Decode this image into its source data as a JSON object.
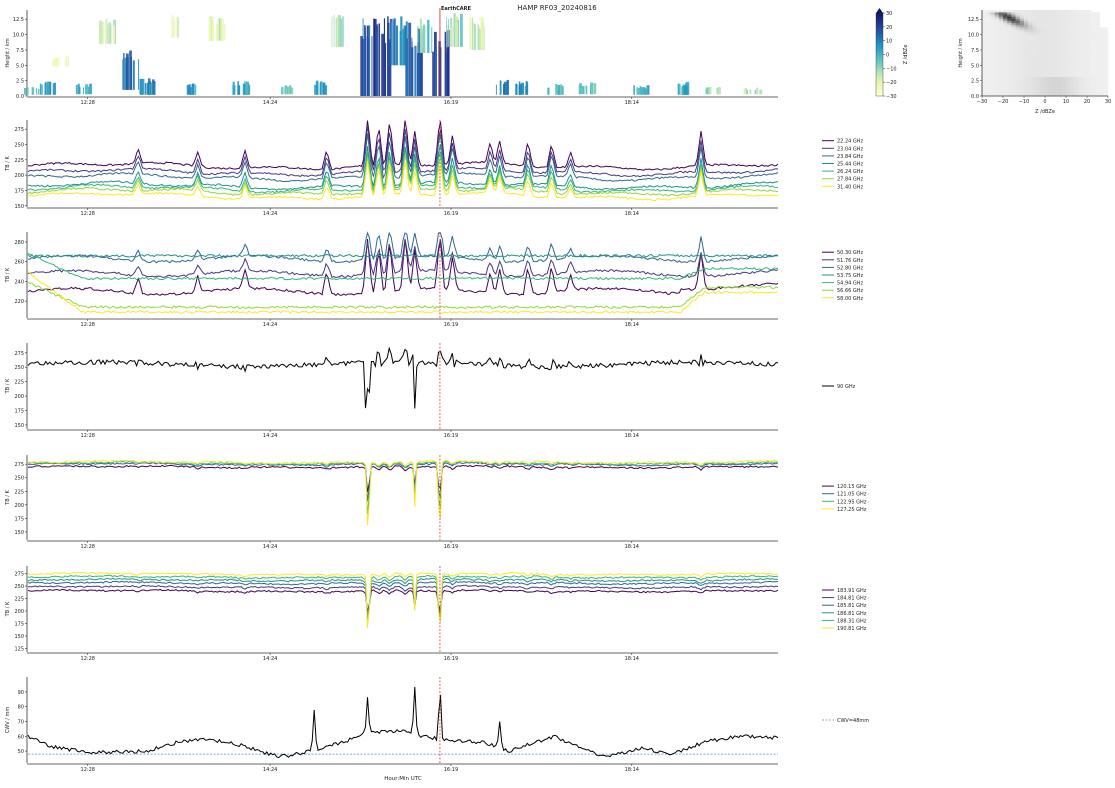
{
  "figure": {
    "title": "HAMP RF03_20240816",
    "xlabel": "Hour:Min UTC",
    "x_ticks": [
      "12:28",
      "14:24",
      "16:19",
      "18:14"
    ],
    "x_range": [
      "11:50",
      "19:47"
    ],
    "event_time": "16:12",
    "event_label": "EarthCARE",
    "event_color": "#e41a1c"
  },
  "chart_data": [
    {
      "id": "radar",
      "type": "heatmap",
      "ylabel": "Height / km",
      "ylim": [
        0,
        14
      ],
      "y_ticks": [
        "0.0",
        "2.5",
        "5.0",
        "7.5",
        "10.0",
        "12.5"
      ],
      "colorbar": {
        "label": "Z /dBZe",
        "range": [
          -30,
          30
        ],
        "ticks": [
          "−30",
          "−20",
          "−10",
          "0",
          "10",
          "20",
          "30"
        ],
        "colormap": [
          "#ffffd9",
          "#edf8b1",
          "#c7e9b4",
          "#7fcdbb",
          "#41b6c4",
          "#1d91c0",
          "#225ea8",
          "#253494",
          "#081d58"
        ]
      },
      "cloud_cells": [
        {
          "t": "11:52",
          "base": 0.2,
          "top": 1.6,
          "dbz": -8
        },
        {
          "t": "12:02",
          "base": 0.2,
          "top": 2.4,
          "dbz": 5
        },
        {
          "t": "12:10",
          "base": 4.8,
          "top": 6.5,
          "dbz": -22
        },
        {
          "t": "12:25",
          "base": 0.3,
          "top": 2.0,
          "dbz": 0
        },
        {
          "t": "12:40",
          "base": 8.5,
          "top": 13.0,
          "dbz": -18
        },
        {
          "t": "12:55",
          "base": 1.0,
          "top": 7.5,
          "dbz": 12
        },
        {
          "t": "13:05",
          "base": 0.2,
          "top": 3.0,
          "dbz": 8
        },
        {
          "t": "13:20",
          "base": 9.5,
          "top": 13.5,
          "dbz": -20
        },
        {
          "t": "13:35",
          "base": 0.2,
          "top": 2.2,
          "dbz": 4
        },
        {
          "t": "13:50",
          "base": 9.0,
          "top": 13.0,
          "dbz": -16
        },
        {
          "t": "14:05",
          "base": 0.2,
          "top": 2.5,
          "dbz": 2
        },
        {
          "t": "14:35",
          "base": 0.3,
          "top": 1.8,
          "dbz": -4
        },
        {
          "t": "14:55",
          "base": 0.2,
          "top": 2.6,
          "dbz": 3
        },
        {
          "t": "15:05",
          "base": 8.0,
          "top": 13.5,
          "dbz": -14
        },
        {
          "t": "15:25",
          "base": 0.0,
          "top": 13.5,
          "dbz": 18
        },
        {
          "t": "15:35",
          "base": 0.0,
          "top": 13.0,
          "dbz": 22
        },
        {
          "t": "15:45",
          "base": 5.0,
          "top": 13.5,
          "dbz": 10
        },
        {
          "t": "15:55",
          "base": 0.0,
          "top": 12.5,
          "dbz": 16
        },
        {
          "t": "16:02",
          "base": 7.0,
          "top": 13.5,
          "dbz": -6
        },
        {
          "t": "16:12",
          "base": 0.0,
          "top": 12.0,
          "dbz": 20
        },
        {
          "t": "16:20",
          "base": 8.0,
          "top": 13.8,
          "dbz": -10
        },
        {
          "t": "16:35",
          "base": 7.5,
          "top": 13.0,
          "dbz": -15
        },
        {
          "t": "16:50",
          "base": 0.2,
          "top": 2.8,
          "dbz": 8
        },
        {
          "t": "17:05",
          "base": 0.2,
          "top": 2.5,
          "dbz": 6
        },
        {
          "t": "17:25",
          "base": 0.2,
          "top": 2.0,
          "dbz": 0
        },
        {
          "t": "17:45",
          "base": 0.3,
          "top": 2.2,
          "dbz": -2
        },
        {
          "t": "18:20",
          "base": 0.2,
          "top": 1.8,
          "dbz": 2
        },
        {
          "t": "18:45",
          "base": 0.2,
          "top": 2.4,
          "dbz": 5
        },
        {
          "t": "19:05",
          "base": 0.3,
          "top": 1.5,
          "dbz": -10
        },
        {
          "t": "19:30",
          "base": 0.3,
          "top": 1.4,
          "dbz": -12
        }
      ]
    },
    {
      "id": "cfad",
      "type": "heatmap",
      "xlabel": "Z /dBZe",
      "ylabel": "Height / km",
      "xlim": [
        -30,
        30
      ],
      "ylim": [
        0,
        14
      ],
      "x_ticks": [
        "−30",
        "−20",
        "−10",
        "0",
        "10",
        "20",
        "30"
      ],
      "y_ticks": [
        "0.0",
        "2.5",
        "5.0",
        "7.5",
        "10.0",
        "12.5"
      ]
    },
    {
      "id": "kband",
      "type": "line",
      "ylabel": "TB / K",
      "ylim": [
        148,
        290
      ],
      "y_ticks": [
        "150",
        "175",
        "200",
        "225",
        "250",
        "275"
      ],
      "series": [
        {
          "name": "22.24 GHz",
          "base": 215,
          "color": "#440154"
        },
        {
          "name": "23.04 GHz",
          "base": 205,
          "color": "#443983"
        },
        {
          "name": "23.84 GHz",
          "base": 197,
          "color": "#31688e"
        },
        {
          "name": "25.44 GHz",
          "base": 183,
          "color": "#21918c"
        },
        {
          "name": "26.24 GHz",
          "base": 178,
          "color": "#35b779"
        },
        {
          "name": "27.84 GHz",
          "base": 173,
          "color": "#90d743"
        },
        {
          "name": "31.40 GHz",
          "base": 166,
          "color": "#fde725"
        }
      ]
    },
    {
      "id": "vband",
      "type": "line",
      "ylabel": "TB / K",
      "ylim": [
        203,
        290
      ],
      "y_ticks": [
        "220",
        "240",
        "260",
        "280"
      ],
      "series": [
        {
          "name": "50.30 GHz",
          "base": 230,
          "color": "#440154"
        },
        {
          "name": "51.76 GHz",
          "base": 248,
          "color": "#443983"
        },
        {
          "name": "52.80 GHz",
          "base": 263,
          "color": "#31688e"
        },
        {
          "name": "53.75 GHz",
          "base": 266,
          "color": "#21918c"
        },
        {
          "name": "54.94 GHz",
          "base": 243,
          "color": "#35b779"
        },
        {
          "name": "56.66 GHz",
          "base": 214,
          "color": "#90d743"
        },
        {
          "name": "58.00 GHz",
          "base": 209,
          "color": "#fde725"
        }
      ]
    },
    {
      "id": "wband",
      "type": "line",
      "ylabel": "TB / K",
      "ylim": [
        143,
        292
      ],
      "y_ticks": [
        "150",
        "175",
        "200",
        "225",
        "250",
        "275"
      ],
      "series": [
        {
          "name": "90 GHz",
          "base": 255,
          "color": "#000000"
        }
      ]
    },
    {
      "id": "fband",
      "type": "line",
      "ylabel": "TB / K",
      "ylim": [
        135,
        292
      ],
      "y_ticks": [
        "150",
        "175",
        "200",
        "225",
        "250",
        "275"
      ],
      "series": [
        {
          "name": "120.15 GHz",
          "base": 270,
          "color": "#440154"
        },
        {
          "name": "121.05 GHz",
          "base": 275,
          "color": "#31688e"
        },
        {
          "name": "122.95 GHz",
          "base": 277,
          "color": "#35b779"
        },
        {
          "name": "127.25 GHz",
          "base": 279,
          "color": "#fde725"
        }
      ]
    },
    {
      "id": "gband",
      "type": "line",
      "ylabel": "TB / K",
      "ylim": [
        118,
        290
      ],
      "y_ticks": [
        "125",
        "150",
        "175",
        "200",
        "225",
        "250",
        "275"
      ],
      "series": [
        {
          "name": "183.91 GHz",
          "base": 240,
          "color": "#440154"
        },
        {
          "name": "184.81 GHz",
          "base": 248,
          "color": "#443983"
        },
        {
          "name": "185.81 GHz",
          "base": 256,
          "color": "#31688e"
        },
        {
          "name": "186.81 GHz",
          "base": 262,
          "color": "#21918c"
        },
        {
          "name": "188.31 GHz",
          "base": 268,
          "color": "#35b779"
        },
        {
          "name": "190.81 GHz",
          "base": 274,
          "color": "#fde725"
        }
      ]
    },
    {
      "id": "cwv",
      "type": "line",
      "ylabel": "CWV / mm",
      "ylim": [
        42,
        100
      ],
      "y_ticks": [
        "50",
        "60",
        "70",
        "80",
        "90"
      ],
      "series": [
        {
          "name": "",
          "color": "#000000"
        }
      ],
      "threshold": {
        "name": "CWV=48mm",
        "value": 48,
        "color": "#4a90d9"
      }
    }
  ]
}
